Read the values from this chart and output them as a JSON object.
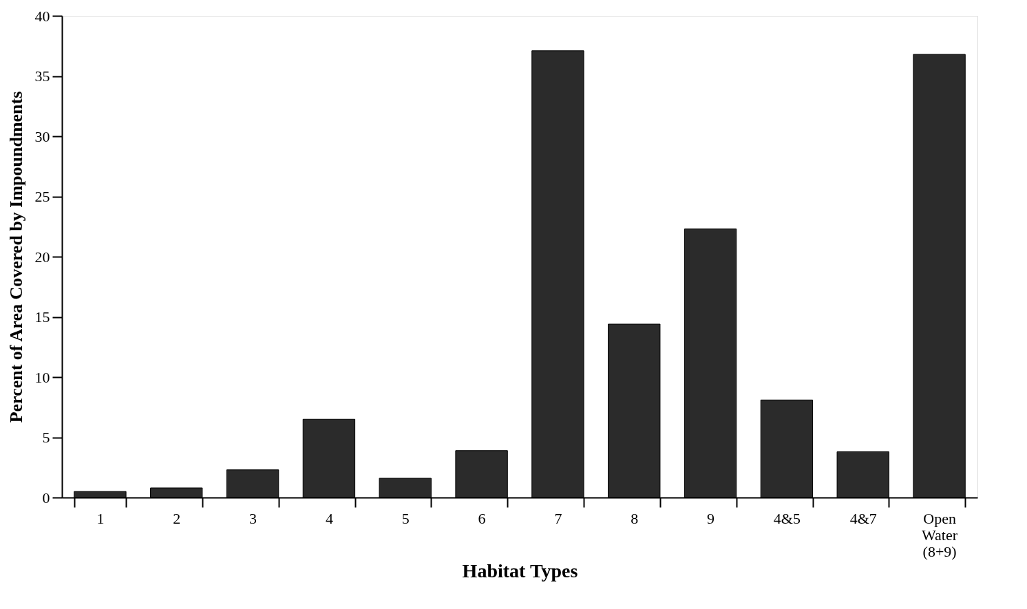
{
  "chart_data": {
    "type": "bar",
    "xlabel": "Habitat Types",
    "ylabel": "Percent of Area Covered by Impoundments",
    "categories": [
      "1",
      "2",
      "3",
      "4",
      "5",
      "6",
      "7",
      "8",
      "9",
      "4&5",
      "4&7",
      "Open Water (8+9)"
    ],
    "values": [
      0.5,
      0.8,
      2.3,
      6.5,
      1.6,
      3.9,
      37.1,
      14.4,
      22.3,
      8.1,
      3.8,
      36.8
    ],
    "color": "#2b2b2b",
    "ylim": [
      0,
      40
    ],
    "yticks": [
      0,
      5,
      10,
      15,
      20,
      25,
      30,
      35,
      40
    ],
    "grid": false
  }
}
